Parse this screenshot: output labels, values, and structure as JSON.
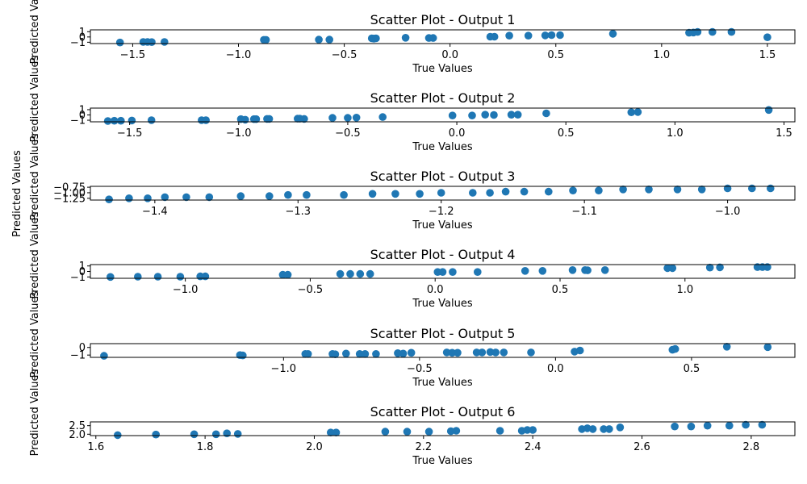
{
  "figure": {
    "shared_ylabel": "Predicted Values"
  },
  "chart_data": [
    {
      "type": "scatter",
      "title": "Scatter Plot - Output 1",
      "xlabel": "True Values",
      "ylabel": "Predicted Values",
      "xlim": [
        -1.7,
        1.63
      ],
      "ylim": [
        -1.25,
        1.35
      ],
      "xticks": [
        -1.5,
        -1.0,
        -0.5,
        0.0,
        0.5,
        1.0,
        1.5
      ],
      "xtick_labels": [
        "−1.5",
        "−1.0",
        "−0.5",
        "0.0",
        "0.5",
        "1.0",
        "1.5"
      ],
      "yticks": [
        -1,
        0,
        1
      ],
      "ytick_labels": [
        "−1",
        "0",
        "1"
      ],
      "x": [
        -1.56,
        -1.45,
        -1.43,
        -1.41,
        -1.35,
        -0.88,
        -0.87,
        -0.62,
        -0.57,
        -0.37,
        -0.36,
        -0.35,
        -0.21,
        -0.1,
        -0.08,
        0.19,
        0.21,
        0.28,
        0.37,
        0.45,
        0.48,
        0.52,
        0.77,
        1.13,
        1.15,
        1.17,
        1.24,
        1.33,
        1.5
      ],
      "y": [
        -1.05,
        -0.95,
        -0.95,
        -0.98,
        -0.95,
        -0.55,
        -0.55,
        -0.5,
        -0.5,
        -0.25,
        -0.3,
        -0.25,
        -0.15,
        -0.2,
        -0.2,
        0.05,
        0.05,
        0.25,
        0.25,
        0.3,
        0.35,
        0.35,
        0.6,
        0.8,
        0.85,
        0.95,
        0.95,
        0.95,
        -0.05
      ]
    },
    {
      "type": "scatter",
      "title": "Scatter Plot - Output 2",
      "xlabel": "True Values",
      "ylabel": "Predicted Values",
      "xlim": [
        -1.68,
        1.55
      ],
      "ylim": [
        -1.3,
        1.3
      ],
      "xticks": [
        -1.5,
        -1.0,
        -0.5,
        0.0,
        0.5,
        1.0,
        1.5
      ],
      "xtick_labels": [
        "−1.5",
        "−1.0",
        "−0.5",
        "0.0",
        "0.5",
        "1.0",
        "1.5"
      ],
      "yticks": [
        -1,
        0,
        1
      ],
      "ytick_labels": [
        "−1",
        "0",
        "1"
      ],
      "x": [
        -1.6,
        -1.57,
        -1.54,
        -1.49,
        -1.4,
        -1.17,
        -1.15,
        -0.99,
        -0.97,
        -0.93,
        -0.92,
        -0.87,
        -0.86,
        -0.73,
        -0.72,
        -0.7,
        -0.57,
        -0.5,
        -0.46,
        -0.34,
        -0.02,
        0.07,
        0.13,
        0.17,
        0.25,
        0.28,
        0.41,
        0.8,
        0.83,
        1.43
      ],
      "y": [
        -1.15,
        -1.1,
        -1.1,
        -1.05,
        -1.0,
        -1.0,
        -1.0,
        -0.8,
        -0.9,
        -0.8,
        -0.8,
        -0.75,
        -0.75,
        -0.7,
        -0.7,
        -0.75,
        -0.55,
        -0.55,
        -0.5,
        -0.4,
        -0.1,
        -0.1,
        0.05,
        0.0,
        0.05,
        0.05,
        0.3,
        0.5,
        0.55,
        0.95
      ]
    },
    {
      "type": "scatter",
      "title": "Scatter Plot - Output 3",
      "xlabel": "True Values",
      "ylabel": "Predicted Values",
      "xlim": [
        -1.445,
        -0.953
      ],
      "ylim": [
        -1.33,
        -0.71
      ],
      "xticks": [
        -1.4,
        -1.3,
        -1.2,
        -1.1,
        -1.0
      ],
      "xtick_labels": [
        "−1.4",
        "−1.3",
        "−1.2",
        "−1.1",
        "−1.0"
      ],
      "yticks": [
        -1.25,
        -1.0,
        -0.75
      ],
      "ytick_labels": [
        "−1.25",
        "−1.00",
        "−0.75"
      ],
      "x": [
        -1.432,
        -1.418,
        -1.405,
        -1.393,
        -1.378,
        -1.362,
        -1.34,
        -1.32,
        -1.307,
        -1.294,
        -1.268,
        -1.248,
        -1.232,
        -1.215,
        -1.2,
        -1.178,
        -1.166,
        -1.155,
        -1.142,
        -1.125,
        -1.108,
        -1.09,
        -1.073,
        -1.055,
        -1.035,
        -1.018,
        -1.0,
        -0.983,
        -0.97
      ],
      "y": [
        -1.3,
        -1.25,
        -1.25,
        -1.2,
        -1.2,
        -1.2,
        -1.15,
        -1.15,
        -1.1,
        -1.1,
        -1.1,
        -1.05,
        -1.05,
        -1.05,
        -1.0,
        -1.0,
        -1.0,
        -0.95,
        -0.95,
        -0.95,
        -0.9,
        -0.9,
        -0.85,
        -0.85,
        -0.85,
        -0.85,
        -0.8,
        -0.8,
        -0.8
      ]
    },
    {
      "type": "scatter",
      "title": "Scatter Plot - Output 4",
      "xlabel": "True Values",
      "ylabel": "Predicted Values",
      "xlim": [
        -1.38,
        1.44
      ],
      "ylim": [
        -1.25,
        1.25
      ],
      "xticks": [
        -1.0,
        -0.5,
        0.0,
        0.5,
        1.0
      ],
      "xtick_labels": [
        "−1.0",
        "−0.5",
        "0.0",
        "0.5",
        "1.0"
      ],
      "yticks": [
        -1,
        0,
        1
      ],
      "ytick_labels": [
        "−1",
        "0",
        "1"
      ],
      "x": [
        -1.3,
        -1.19,
        -1.11,
        -1.02,
        -0.94,
        -0.92,
        -0.61,
        -0.59,
        -0.38,
        -0.34,
        -0.3,
        -0.26,
        0.01,
        0.03,
        0.07,
        0.17,
        0.36,
        0.43,
        0.55,
        0.6,
        0.61,
        0.68,
        0.93,
        0.95,
        1.1,
        1.14,
        1.29,
        1.31,
        1.33
      ],
      "y": [
        -1.0,
        -0.95,
        -0.95,
        -0.95,
        -0.9,
        -0.9,
        -0.6,
        -0.6,
        -0.45,
        -0.45,
        -0.45,
        -0.45,
        -0.1,
        -0.1,
        -0.1,
        -0.1,
        0.1,
        0.1,
        0.25,
        0.25,
        0.2,
        0.25,
        0.6,
        0.6,
        0.7,
        0.75,
        0.8,
        0.8,
        0.8
      ]
    },
    {
      "type": "scatter",
      "title": "Scatter Plot - Output 5",
      "xlabel": "True Values",
      "ylabel": "Predicted Values",
      "xlim": [
        -1.71,
        0.88
      ],
      "ylim": [
        -1.3,
        0.5
      ],
      "xticks": [
        -1.0,
        -0.5,
        0.0,
        0.5
      ],
      "xtick_labels": [
        "−1.0",
        "−0.5",
        "0.0",
        "0.5"
      ],
      "yticks": [
        -1,
        0
      ],
      "ytick_labels": [
        "−1",
        "0"
      ],
      "x": [
        -1.66,
        -1.16,
        -1.15,
        -0.92,
        -0.91,
        -0.82,
        -0.81,
        -0.77,
        -0.72,
        -0.7,
        -0.66,
        -0.58,
        -0.56,
        -0.53,
        -0.4,
        -0.38,
        -0.36,
        -0.29,
        -0.27,
        -0.24,
        -0.22,
        -0.19,
        -0.09,
        0.07,
        0.09,
        0.43,
        0.44,
        0.63,
        0.78
      ],
      "y": [
        -1.1,
        -1.0,
        -1.05,
        -0.85,
        -0.85,
        -0.85,
        -0.9,
        -0.8,
        -0.85,
        -0.85,
        -0.85,
        -0.75,
        -0.8,
        -0.7,
        -0.65,
        -0.7,
        -0.7,
        -0.65,
        -0.65,
        -0.6,
        -0.65,
        -0.65,
        -0.65,
        -0.55,
        -0.4,
        -0.3,
        -0.2,
        0.1,
        0.05
      ]
    },
    {
      "type": "scatter",
      "title": "Scatter Plot - Output 6",
      "xlabel": "True Values",
      "ylabel": "Predicted Values",
      "xlim": [
        1.59,
        2.88
      ],
      "ylim": [
        1.92,
        2.72
      ],
      "xticks": [
        1.6,
        1.8,
        2.0,
        2.2,
        2.4,
        2.6,
        2.8
      ],
      "xtick_labels": [
        "1.6",
        "1.8",
        "2.0",
        "2.2",
        "2.4",
        "2.6",
        "2.8"
      ],
      "yticks": [
        2.0,
        2.5
      ],
      "ytick_labels": [
        "2.0",
        "2.5"
      ],
      "x": [
        1.64,
        1.71,
        1.78,
        1.82,
        1.84,
        1.86,
        2.03,
        2.04,
        2.13,
        2.17,
        2.21,
        2.25,
        2.26,
        2.34,
        2.38,
        2.39,
        2.4,
        2.49,
        2.5,
        2.51,
        2.53,
        2.54,
        2.56,
        2.66,
        2.69,
        2.72,
        2.76,
        2.79,
        2.82
      ],
      "y": [
        1.95,
        1.98,
        2.0,
        2.0,
        2.05,
        2.02,
        2.1,
        2.1,
        2.15,
        2.15,
        2.15,
        2.18,
        2.2,
        2.2,
        2.2,
        2.25,
        2.25,
        2.3,
        2.35,
        2.3,
        2.3,
        2.3,
        2.4,
        2.45,
        2.45,
        2.5,
        2.5,
        2.55,
        2.55
      ]
    }
  ]
}
